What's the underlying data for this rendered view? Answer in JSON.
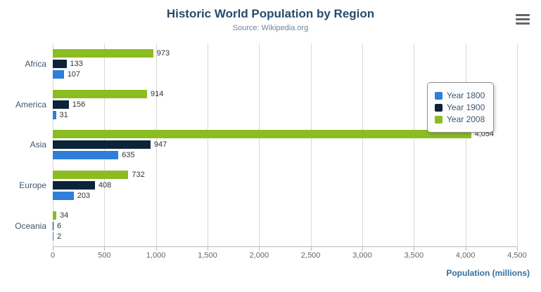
{
  "chart_data": {
    "type": "bar",
    "title": "Historic World Population by Region",
    "subtitle": "Source: Wikipedia.org",
    "xlabel": "Population (millions)",
    "categories": [
      "Africa",
      "America",
      "Asia",
      "Europe",
      "Oceania"
    ],
    "series": [
      {
        "name": "Year 1800",
        "color": "#2f7ed8",
        "values": [
          107,
          31,
          635,
          203,
          2
        ]
      },
      {
        "name": "Year 1900",
        "color": "#0d233a",
        "values": [
          133,
          156,
          947,
          408,
          6
        ]
      },
      {
        "name": "Year 2008",
        "color": "#8bbc21",
        "values": [
          973,
          914,
          4054,
          732,
          34
        ]
      }
    ],
    "bar_display_order": [
      "Year 2008",
      "Year 1900",
      "Year 1800"
    ],
    "xmax": 4500,
    "x_ticks": [
      {
        "value": 0,
        "label": "0"
      },
      {
        "value": 500,
        "label": "500"
      },
      {
        "value": 1000,
        "label": "1,000"
      },
      {
        "value": 1500,
        "label": "1,500"
      },
      {
        "value": 2000,
        "label": "2,000"
      },
      {
        "value": 2500,
        "label": "2,500"
      },
      {
        "value": 3000,
        "label": "3,000"
      },
      {
        "value": 3500,
        "label": "3,500"
      },
      {
        "value": 4000,
        "label": "4,000"
      },
      {
        "value": 4500,
        "label": "4,500"
      }
    ],
    "grid": true,
    "legend_position": "right",
    "colors": {
      "title": "#274b6d",
      "subtitle": "#6D869F",
      "category": "#3E576F",
      "tick": "#666666",
      "axis_title": "#35709d",
      "grid": "#d8d8d8"
    }
  }
}
